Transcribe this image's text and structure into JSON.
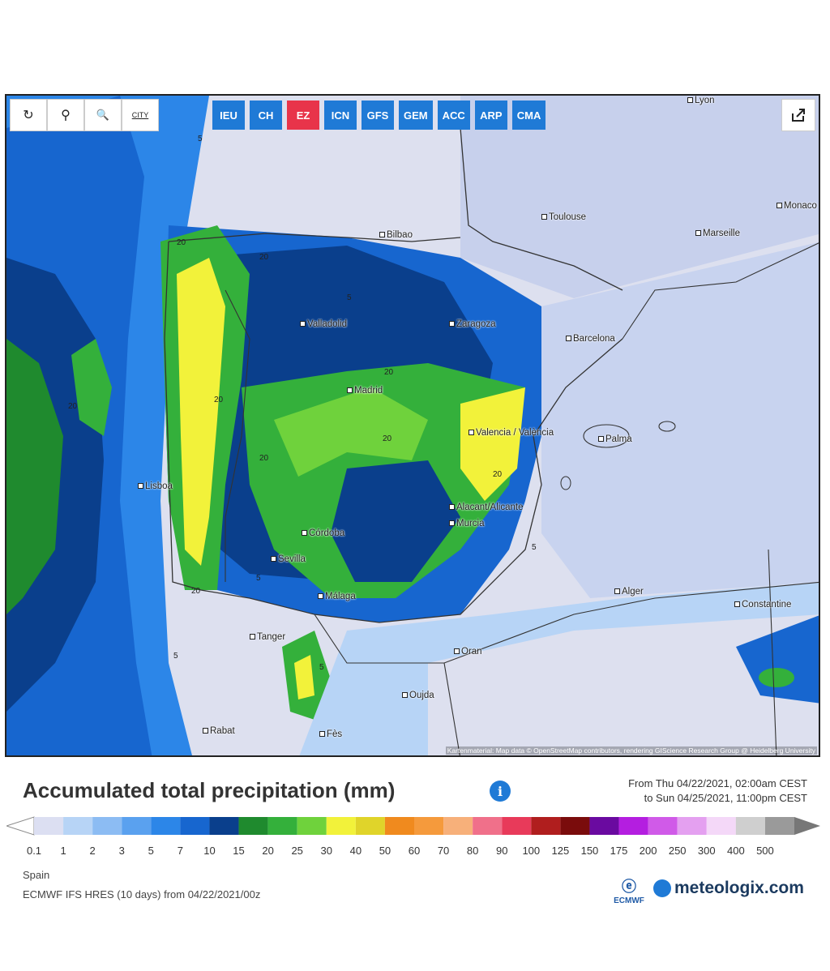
{
  "toolbar": {
    "tools": [
      {
        "name": "refresh-icon",
        "glyph": "↻"
      },
      {
        "name": "location-pin-icon",
        "glyph": "⚲"
      },
      {
        "name": "zoom-icon",
        "glyph": "🔍"
      },
      {
        "name": "city-icon",
        "glyph": "CITY"
      }
    ],
    "models": [
      {
        "label": "IEU",
        "active": false
      },
      {
        "label": "CH",
        "active": false
      },
      {
        "label": "EZ",
        "active": true
      },
      {
        "label": "ICN",
        "active": false
      },
      {
        "label": "GFS",
        "active": false
      },
      {
        "label": "GEM",
        "active": false
      },
      {
        "label": "ACC",
        "active": false
      },
      {
        "label": "ARP",
        "active": false
      },
      {
        "label": "CMA",
        "active": false
      }
    ],
    "share_icon": "share-icon"
  },
  "map": {
    "cities": [
      {
        "name": "Lyon"
      },
      {
        "name": "Toulouse"
      },
      {
        "name": "Monaco"
      },
      {
        "name": "Marseille"
      },
      {
        "name": "Bilbao"
      },
      {
        "name": "Valladolid"
      },
      {
        "name": "Zaragoza"
      },
      {
        "name": "Barcelona"
      },
      {
        "name": "Madrid"
      },
      {
        "name": "Valencia / València"
      },
      {
        "name": "Palma"
      },
      {
        "name": "Lisboa"
      },
      {
        "name": "Alacant/Alicante"
      },
      {
        "name": "Murcia"
      },
      {
        "name": "Córdoba"
      },
      {
        "name": "Sevilla"
      },
      {
        "name": "Málaga"
      },
      {
        "name": "Alger"
      },
      {
        "name": "Constantine"
      },
      {
        "name": "Tanger"
      },
      {
        "name": "Oran"
      },
      {
        "name": "Oujda"
      },
      {
        "name": "Rabat"
      },
      {
        "name": "Fès"
      }
    ],
    "contour_labels": [
      "5",
      "20",
      "20",
      "5",
      "20",
      "20",
      "20",
      "5",
      "20",
      "20",
      "5",
      "5",
      "20",
      "20",
      "5"
    ],
    "attribution": "Kartenmaterial: Map data © OpenStreetMap contributors, rendering GIScience Research Group @ Heidelberg University"
  },
  "header": {
    "title": "Accumulated total precipitation (mm)",
    "period_from": "From Thu 04/22/2021, 02:00am CEST",
    "period_to": "to Sun 04/25/2021, 11:00pm CEST"
  },
  "legend": {
    "ticks": [
      "0.1",
      "1",
      "2",
      "3",
      "5",
      "7",
      "10",
      "15",
      "20",
      "25",
      "30",
      "40",
      "50",
      "60",
      "70",
      "80",
      "90",
      "100",
      "125",
      "150",
      "175",
      "200",
      "250",
      "300",
      "400",
      "500"
    ],
    "colors": [
      "#dcdff2",
      "#b7d4f6",
      "#8cbcf3",
      "#5aa1ef",
      "#2c86e8",
      "#1766cf",
      "#0a3f8c",
      "#1f8a2e",
      "#34b03b",
      "#6fd23c",
      "#f2f23a",
      "#e0d42a",
      "#f08a1e",
      "#f59a3c",
      "#f7b07a",
      "#f0708a",
      "#e83a5a",
      "#b01e1e",
      "#7a0c0c",
      "#6a0aa0",
      "#b41ee0",
      "#d05ae8",
      "#e4a0f0",
      "#f4d8f8",
      "#cfcfcf",
      "#9a9a9a"
    ]
  },
  "footer": {
    "region": "Spain",
    "model_run": "ECMWF IFS HRES (10 days) from 04/22/2021/00z",
    "ecmwf_label": "ECMWF",
    "brand": "meteologix.com"
  }
}
